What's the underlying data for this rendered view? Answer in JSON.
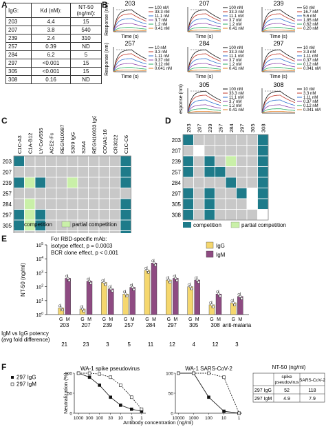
{
  "panel_letters": [
    "A",
    "B",
    "C",
    "D",
    "E",
    "F"
  ],
  "panel_a": {
    "headers": [
      "IgG:",
      "Kd (nM):",
      "NT-50 (ng/ml):"
    ],
    "rows": [
      [
        "203",
        "4.4",
        "15"
      ],
      [
        "207",
        "3.8",
        "540"
      ],
      [
        "239",
        "2.4",
        "310"
      ],
      [
        "257",
        "0.39",
        "ND"
      ],
      [
        "284",
        "6.2",
        "5"
      ],
      [
        "297",
        "<0.001",
        "15"
      ],
      [
        "305",
        "<0.001",
        "15"
      ],
      [
        "308",
        "0.16",
        "ND"
      ]
    ]
  },
  "panel_b": {
    "ylabel": "Response (nm)",
    "xlabel": "Time (s)",
    "plots": [
      {
        "title": "203",
        "legend": [
          "100 nM",
          "33.3 nM",
          "11.1 nM",
          "3.7 nM",
          "1.2 nM",
          "0.41 nM"
        ]
      },
      {
        "title": "207",
        "legend": [
          "100 nM",
          "33.3 nM",
          "11.1 nM",
          "3.7 nM",
          "1.2 nM",
          "0.41 nM"
        ]
      },
      {
        "title": "239",
        "legend": [
          "50 nM",
          "16.7 nM",
          "5.6 nM",
          "1.85 nM",
          "0.62 nM",
          "0.20 nM"
        ]
      },
      {
        "title": "257",
        "legend": [
          "10 nM",
          "3.3 nM",
          "1.11 nM",
          "0.37 nM",
          "0.12 nM",
          "0.041 nM"
        ]
      },
      {
        "title": "284",
        "legend": [
          "100 nM",
          "33.3 nM",
          "11.1 nM",
          "3.7 nM",
          "1.2 nM",
          "0.41 nM"
        ]
      },
      {
        "title": "297",
        "legend": [
          "10 nM",
          "3.3 nM",
          "1.11 nM",
          "0.37 nM",
          "0.12 nM",
          "0.041 nM"
        ]
      },
      {
        "title": "305",
        "legend": [
          "100 nM",
          "33.3 nM",
          "11.1 nM",
          "3.7 nM",
          "1.2 nM",
          "0.41 nM"
        ]
      },
      {
        "title": "308",
        "legend": [
          "10 nM",
          "3.3 nM",
          "1.11 nM",
          "0.37 nM",
          "0.12 nM",
          "0.041 nM"
        ]
      }
    ],
    "colors": [
      "#111111",
      "#c0392b",
      "#2e6fd0",
      "#8e44ad",
      "#27ae60",
      "#e67e22"
    ]
  },
  "panel_c": {
    "cols": [
      "C1C-A3",
      "C1A-B12",
      "LY-CoV555",
      "ACE2-Fc",
      "REGN10987",
      "S309 IgG",
      "S2A4",
      "REGN10933 IgG",
      "COVA1-16",
      "CR3022",
      "C1C-C6"
    ],
    "rows": [
      "203",
      "207",
      "239",
      "257",
      "284",
      "297",
      "305",
      "308"
    ],
    "grid": [
      [
        2,
        0,
        0,
        0,
        0,
        0,
        0,
        0,
        0,
        0,
        2
      ],
      [
        0,
        0,
        0,
        0,
        0,
        0,
        0,
        0,
        0,
        0,
        2
      ],
      [
        2,
        1,
        2,
        0,
        0,
        1,
        0,
        0,
        0,
        0,
        2
      ],
      [
        0,
        0,
        0,
        0,
        0,
        0,
        0,
        0,
        0,
        0,
        0
      ],
      [
        0,
        1,
        0,
        0,
        0,
        0,
        0,
        0,
        0,
        0,
        2
      ],
      [
        2,
        1,
        2,
        0,
        0,
        0,
        0,
        0,
        0,
        0,
        2
      ],
      [
        2,
        1,
        2,
        0,
        0,
        0,
        0,
        0,
        0,
        0,
        2
      ],
      [
        0,
        0,
        0,
        0,
        0,
        0,
        0,
        0,
        0,
        0,
        2
      ]
    ],
    "legend": [
      "competition",
      "partial competition"
    ]
  },
  "panel_d": {
    "cols": [
      "203",
      "207",
      "239",
      "257",
      "284",
      "297",
      "305",
      "308"
    ],
    "rows": [
      "203",
      "207",
      "239",
      "257",
      "284",
      "297",
      "305",
      "308"
    ],
    "grid": [
      [
        2,
        0,
        0,
        0,
        0,
        0,
        0,
        2
      ],
      [
        0,
        3,
        0,
        0,
        0,
        0,
        0,
        2
      ],
      [
        2,
        0,
        2,
        0,
        1,
        0,
        0,
        2
      ],
      [
        2,
        0,
        2,
        2,
        0,
        0,
        0,
        2
      ],
      [
        0,
        0,
        0,
        0,
        2,
        0,
        0,
        2
      ],
      [
        2,
        0,
        2,
        0,
        0,
        2,
        3,
        2
      ],
      [
        2,
        0,
        2,
        0,
        0,
        0,
        3,
        2
      ],
      [
        2,
        0,
        2,
        0,
        0,
        0,
        0,
        3
      ]
    ],
    "legend": [
      "competition",
      "partial competition"
    ]
  },
  "panel_e": {
    "annotation": [
      "For RBD-specific mAb:",
      "isotype effect, p = 0.0003",
      "BCR clone effect, p < 0.001"
    ],
    "ylabel": "NT-50 (ng/ml)",
    "legend": [
      "IgG",
      "IgM"
    ],
    "colors": {
      "igg": "#f5d76e",
      "igm": "#8e4b82"
    },
    "footer_label": [
      "IgM vs IgG potency",
      "(avg fold difference)"
    ]
  },
  "panel_f": {
    "left_title": "WA-1 spike pseudovirus",
    "right_title": "WA-1 SARS-CoV-2",
    "ylabel": "Neutralization (%)",
    "xlabel": "Antibody concentration (ng/ml)",
    "legend": [
      "297 IgG",
      "297 IgM"
    ],
    "table": {
      "title": "NT-50 (ng/ml)",
      "headers": [
        "",
        "spike pseudovirus",
        "SARS-CoV-2"
      ],
      "rows": [
        [
          "297 IgG",
          "52",
          "118"
        ],
        [
          "297 IgM",
          "4.9",
          "7.9"
        ]
      ]
    }
  },
  "chart_data": [
    {
      "type": "bar",
      "title": "",
      "ylabel": "NT-50 (ng/ml)",
      "yscale": "log",
      "ylim": [
        1,
        100000
      ],
      "categories": [
        "203",
        "207",
        "239",
        "257",
        "284",
        "297",
        "305",
        "308",
        "anti-malaria"
      ],
      "series": [
        {
          "name": "IgG",
          "values": [
            3,
            2.5,
            200,
            30,
            1500,
            300,
            100,
            5,
            7
          ]
        },
        {
          "name": "IgM",
          "values": [
            400,
            250,
            70,
            90,
            5000,
            400,
            300,
            30,
            20
          ]
        }
      ],
      "fold_difference": [
        "21",
        "23",
        "3",
        "5",
        "11",
        "12",
        "4",
        "12",
        "3"
      ]
    },
    {
      "type": "line",
      "title": "WA-1 spike pseudovirus",
      "xlabel": "Antibody concentration (ng/ml)",
      "ylabel": "Neutralization (%)",
      "xscale": "log",
      "ylim": [
        0,
        100
      ],
      "x": [
        1000,
        300,
        100,
        30,
        10,
        3,
        1
      ],
      "series": [
        {
          "name": "297 IgG",
          "values": [
            100,
            90,
            70,
            40,
            20,
            10,
            5
          ]
        },
        {
          "name": "297 IgM",
          "values": [
            100,
            100,
            98,
            90,
            70,
            40,
            10
          ]
        }
      ]
    },
    {
      "type": "line",
      "title": "WA-1 SARS-CoV-2",
      "xlabel": "Antibody concentration (ng/ml)",
      "ylabel": "Neutralization (%)",
      "xscale": "log",
      "ylim": [
        0,
        100
      ],
      "x": [
        10000,
        1000,
        100,
        10,
        1
      ],
      "series": [
        {
          "name": "297 IgG",
          "values": [
            100,
            100,
            40,
            5,
            0
          ]
        },
        {
          "name": "297 IgM",
          "values": [
            100,
            100,
            100,
            90,
            0
          ]
        }
      ]
    }
  ]
}
